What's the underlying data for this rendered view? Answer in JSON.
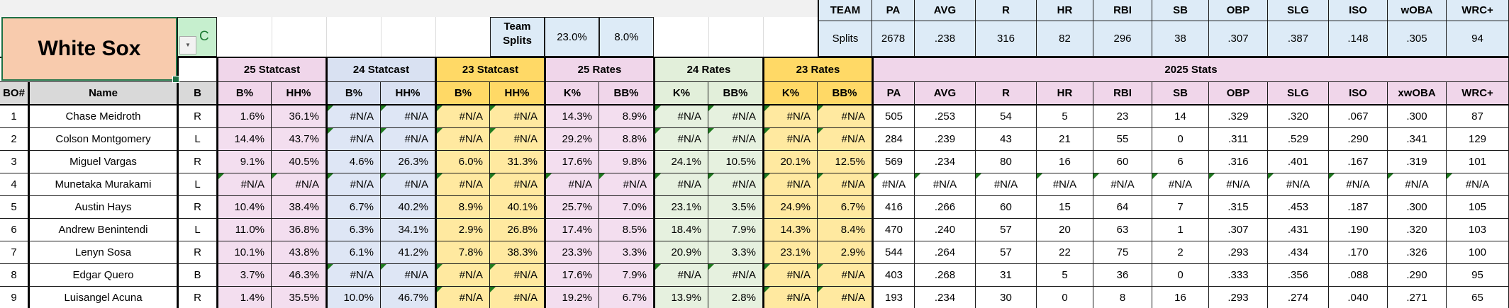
{
  "header": {
    "team_name": "White Sox",
    "position_value": "C",
    "team_splits_label": "Team Splits",
    "team_splits_k": "23.0%",
    "team_splits_bb": "8.0%"
  },
  "team": {
    "title": "TEAM",
    "row_label": "Splits",
    "headers": [
      "PA",
      "AVG",
      "R",
      "HR",
      "RBI",
      "SB",
      "OBP",
      "SLG",
      "ISO",
      "wOBA",
      "WRC+"
    ],
    "values": [
      "2678",
      ".238",
      "316",
      "82",
      "296",
      "38",
      ".307",
      ".387",
      ".148",
      ".305",
      "94"
    ]
  },
  "table": {
    "groups": [
      "25 Statcast",
      "24 Statcast",
      "23 Statcast",
      "25 Rates",
      "24 Rates",
      "23 Rates",
      "2025 Stats"
    ],
    "columns": [
      "BO#",
      "Name",
      "B",
      "B%",
      "HH%",
      "B%",
      "HH%",
      "B%",
      "HH%",
      "K%",
      "BB%",
      "K%",
      "BB%",
      "K%",
      "BB%",
      "PA",
      "AVG",
      "R",
      "HR",
      "RBI",
      "SB",
      "OBP",
      "SLG",
      "ISO",
      "xwOBA",
      "WRC+"
    ],
    "rows": [
      {
        "bo": "1",
        "name": "Chase Meidroth",
        "bats": "R",
        "stats": [
          "1.6%",
          "36.1%",
          "#N/A",
          "#N/A",
          "#N/A",
          "#N/A",
          "14.3%",
          "8.9%",
          "#N/A",
          "#N/A",
          "#N/A",
          "#N/A",
          "505",
          ".253",
          "54",
          "5",
          "23",
          "14",
          ".329",
          ".320",
          ".067",
          ".300",
          "87"
        ]
      },
      {
        "bo": "2",
        "name": "Colson Montgomery",
        "bats": "L",
        "stats": [
          "14.4%",
          "43.7%",
          "#N/A",
          "#N/A",
          "#N/A",
          "#N/A",
          "29.2%",
          "8.8%",
          "#N/A",
          "#N/A",
          "#N/A",
          "#N/A",
          "284",
          ".239",
          "43",
          "21",
          "55",
          "0",
          ".311",
          ".529",
          ".290",
          ".341",
          "129"
        ]
      },
      {
        "bo": "3",
        "name": "Miguel Vargas",
        "bats": "R",
        "stats": [
          "9.1%",
          "40.5%",
          "4.6%",
          "26.3%",
          "6.0%",
          "31.3%",
          "17.6%",
          "9.8%",
          "24.1%",
          "10.5%",
          "20.1%",
          "12.5%",
          "569",
          ".234",
          "80",
          "16",
          "60",
          "6",
          ".316",
          ".401",
          ".167",
          ".319",
          "101"
        ]
      },
      {
        "bo": "4",
        "name": "Munetaka Murakami",
        "bats": "L",
        "stats": [
          "#N/A",
          "#N/A",
          "#N/A",
          "#N/A",
          "#N/A",
          "#N/A",
          "#N/A",
          "#N/A",
          "#N/A",
          "#N/A",
          "#N/A",
          "#N/A",
          "#N/A",
          "#N/A",
          "#N/A",
          "#N/A",
          "#N/A",
          "#N/A",
          "#N/A",
          "#N/A",
          "#N/A",
          "#N/A",
          "#N/A"
        ]
      },
      {
        "bo": "5",
        "name": "Austin Hays",
        "bats": "R",
        "stats": [
          "10.4%",
          "38.4%",
          "6.7%",
          "40.2%",
          "8.9%",
          "40.1%",
          "25.7%",
          "7.0%",
          "23.1%",
          "3.5%",
          "24.9%",
          "6.7%",
          "416",
          ".266",
          "60",
          "15",
          "64",
          "7",
          ".315",
          ".453",
          ".187",
          ".300",
          "105"
        ]
      },
      {
        "bo": "6",
        "name": "Andrew Benintendi",
        "bats": "L",
        "stats": [
          "11.0%",
          "36.8%",
          "6.3%",
          "34.1%",
          "2.9%",
          "26.8%",
          "17.4%",
          "8.5%",
          "18.4%",
          "7.9%",
          "14.3%",
          "8.4%",
          "470",
          ".240",
          "57",
          "20",
          "63",
          "1",
          ".307",
          ".431",
          ".190",
          ".320",
          "103"
        ]
      },
      {
        "bo": "7",
        "name": "Lenyn Sosa",
        "bats": "R",
        "stats": [
          "10.1%",
          "43.8%",
          "6.1%",
          "41.2%",
          "7.8%",
          "38.3%",
          "23.3%",
          "3.3%",
          "20.9%",
          "3.3%",
          "23.1%",
          "2.9%",
          "544",
          ".264",
          "57",
          "22",
          "75",
          "2",
          ".293",
          ".434",
          ".170",
          ".326",
          "100"
        ]
      },
      {
        "bo": "8",
        "name": "Edgar Quero",
        "bats": "B",
        "stats": [
          "3.7%",
          "46.3%",
          "#N/A",
          "#N/A",
          "#N/A",
          "#N/A",
          "17.6%",
          "7.9%",
          "#N/A",
          "#N/A",
          "#N/A",
          "#N/A",
          "403",
          ".268",
          "31",
          "5",
          "36",
          "0",
          ".333",
          ".356",
          ".088",
          ".290",
          "95"
        ]
      },
      {
        "bo": "9",
        "name": "Luisangel Acuna",
        "bats": "R",
        "stats": [
          "1.4%",
          "35.5%",
          "10.0%",
          "46.7%",
          "#N/A",
          "#N/A",
          "19.2%",
          "6.7%",
          "13.9%",
          "2.8%",
          "#N/A",
          "#N/A",
          "193",
          ".234",
          "30",
          "0",
          "8",
          "16",
          ".293",
          ".274",
          ".040",
          ".271",
          "65"
        ]
      }
    ]
  },
  "colors": {
    "selection_green": "#1E7145",
    "team_cell_fill": "#F8CBAD",
    "position_cell_fill": "#C6EFCE",
    "position_text": "#1E7B34",
    "light_blue": "#DDEBF7",
    "pink": "#F0D6EA",
    "periwinkle": "#D9E1F2",
    "gold": "#FFD966",
    "gold_light": "#FFE9A0",
    "green_light": "#E2EFDA",
    "header_gray": "#D9D9D9",
    "error_triangle": "#1F7A1F"
  }
}
